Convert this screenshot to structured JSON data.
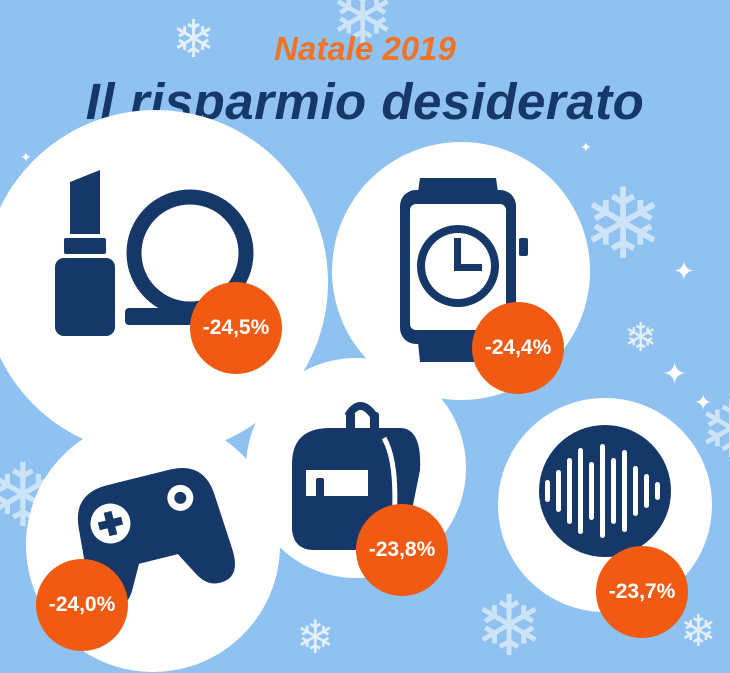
{
  "header": {
    "subtitle": "Natale 2019",
    "title": "Il risparmio desiderato"
  },
  "colors": {
    "background": "#8fc2f0",
    "icon": "#153868",
    "badge": "#f05a12",
    "subtitle": "#f07427"
  },
  "categories": [
    {
      "icon": "cosmetics-icon",
      "value": "-24,5%"
    },
    {
      "icon": "smartwatch-icon",
      "value": "-24,4%"
    },
    {
      "icon": "gamepad-icon",
      "value": "-24,0%"
    },
    {
      "icon": "backpack-icon",
      "value": "-23,8%"
    },
    {
      "icon": "sound-wave-icon",
      "value": "-23,7%"
    }
  ]
}
